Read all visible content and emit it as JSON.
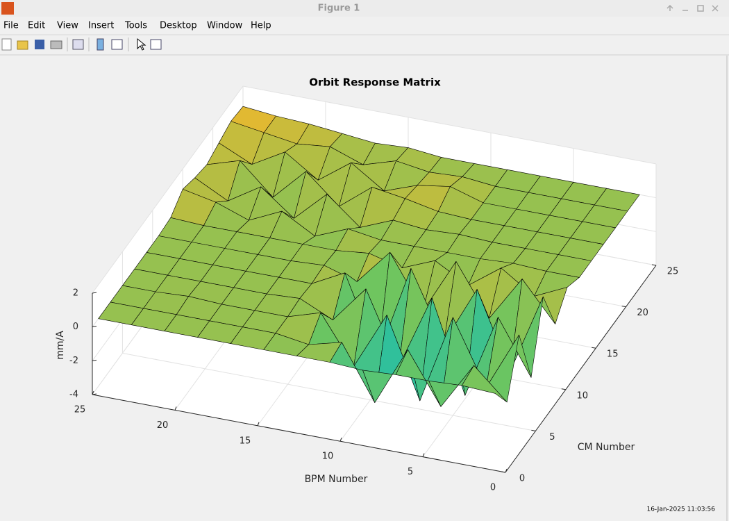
{
  "window": {
    "title": "Figure 1",
    "menus": [
      "File",
      "Edit",
      "View",
      "Insert",
      "Tools",
      "Desktop",
      "Window",
      "Help"
    ]
  },
  "chart_data": {
    "type": "surface",
    "title": "Orbit Response Matrix",
    "x_label": "BPM Number",
    "y_label": "CM Number",
    "z_label": "mm/A",
    "x": [
      1,
      3,
      5,
      7,
      9,
      11,
      13,
      15,
      17,
      19,
      21,
      23,
      25
    ],
    "y": [
      1,
      3,
      5,
      7,
      9,
      11,
      13,
      15,
      17,
      19,
      21,
      23,
      25
    ],
    "z": [
      [
        0,
        0.1,
        0,
        0,
        -0.1,
        0,
        0,
        0,
        0,
        0,
        0,
        0,
        0
      ],
      [
        -1.5,
        0.3,
        -2.5,
        0.5,
        -3,
        0.2,
        -0.3,
        0,
        0,
        0,
        0,
        0,
        0
      ],
      [
        1.5,
        -2,
        1.8,
        -3.5,
        1.2,
        -2.2,
        0.6,
        0,
        0,
        0,
        0.1,
        0,
        0
      ],
      [
        -2,
        1.2,
        -3.8,
        1.6,
        -2.8,
        1.4,
        -0.8,
        0.1,
        0,
        0,
        0,
        0,
        0
      ],
      [
        1.8,
        -3,
        1.5,
        -2,
        2,
        -3.6,
        1,
        0,
        0,
        0,
        0,
        0,
        0
      ],
      [
        -0.8,
        1.5,
        -1.2,
        1.8,
        -1.5,
        1.6,
        -0.5,
        0.1,
        0,
        0,
        0,
        0,
        0
      ],
      [
        0.4,
        -0.5,
        0.8,
        -0.6,
        0.5,
        -0.3,
        0.2,
        0,
        0,
        0,
        0,
        0,
        0.1
      ],
      [
        0,
        0,
        0.1,
        0,
        0,
        0,
        0,
        0.3,
        -0.5,
        0.6,
        -0.3,
        0.4,
        0.8
      ],
      [
        0,
        0,
        0,
        0,
        0.1,
        0,
        0.2,
        -0.6,
        1,
        -0.8,
        0.7,
        -0.5,
        0.5
      ],
      [
        0,
        0,
        0,
        0,
        0,
        0.1,
        0.5,
        0.8,
        -0.7,
        1,
        -0.9,
        0.9,
        0.3
      ],
      [
        0,
        0,
        0,
        0,
        0,
        0.6,
        0.3,
        -0.4,
        0.9,
        -0.5,
        0.8,
        -0.3,
        0.6
      ],
      [
        0,
        0,
        0,
        0,
        0,
        0.2,
        0.1,
        0.4,
        -0.2,
        0.5,
        0.3,
        0.6,
        0.9
      ],
      [
        0,
        0,
        0,
        0,
        0,
        0,
        0,
        0.2,
        0.1,
        0.3,
        0.5,
        0.6,
        0.8
      ]
    ],
    "xlim": [
      0,
      25
    ],
    "ylim": [
      0,
      25
    ],
    "zlim": [
      -4,
      2
    ],
    "xticks": [
      0,
      5,
      10,
      15,
      20,
      25
    ],
    "yticks": [
      0,
      5,
      10,
      15,
      20,
      25
    ],
    "zticks": [
      -4,
      -2,
      0,
      2
    ],
    "clim": [
      -4,
      2
    ],
    "colormap": [
      "#3e26a8",
      "#2e87f0",
      "#12beb9",
      "#6cc560",
      "#e9b82f",
      "#f9fb15"
    ],
    "grid": true
  },
  "timestamp": "16-Jan-2025 11:03:56"
}
